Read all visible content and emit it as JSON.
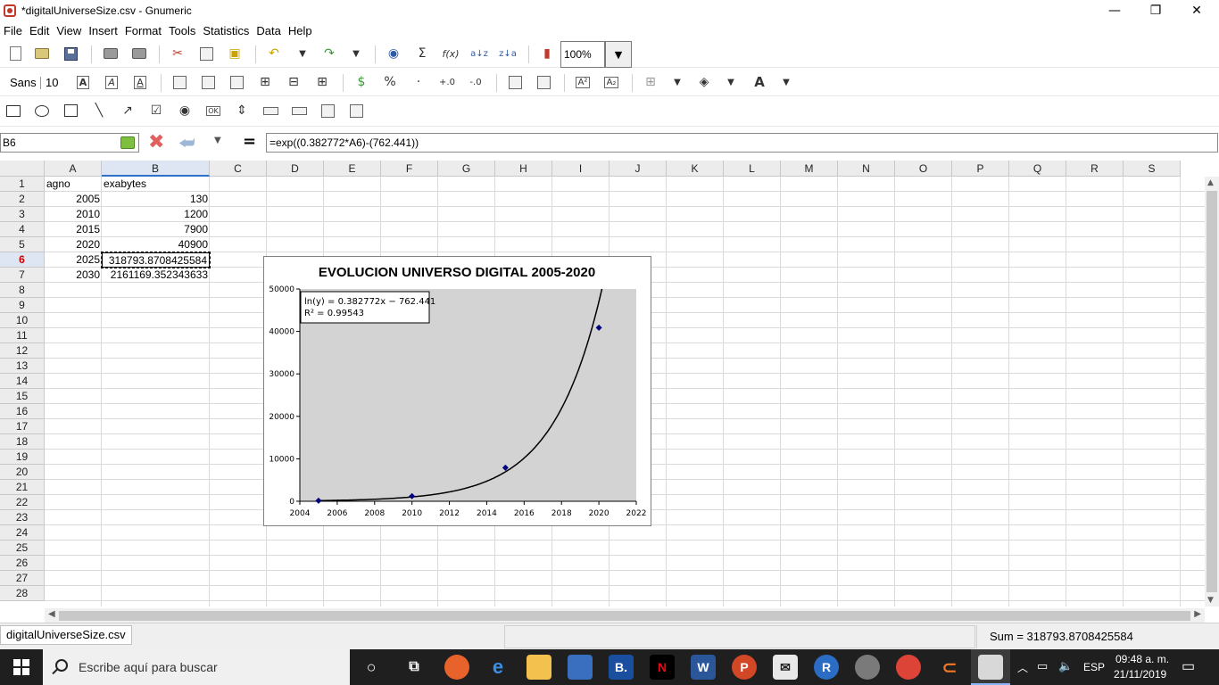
{
  "window": {
    "title": "*digitalUniverseSize.csv - Gnumeric",
    "minimize": "—",
    "restore": "❐",
    "close": "✕"
  },
  "menu": [
    "File",
    "Edit",
    "View",
    "Insert",
    "Format",
    "Tools",
    "Statistics",
    "Data",
    "Help"
  ],
  "toolbar": {
    "zoom": "100%",
    "font_name": "Sans",
    "font_size": "10"
  },
  "formula_bar": {
    "cell_ref": "B6",
    "equals": "=",
    "formula": "=exp((0.382772*A6)-(762.441))"
  },
  "columns": [
    "A",
    "B",
    "C",
    "D",
    "E",
    "F",
    "G",
    "H",
    "I",
    "J",
    "K",
    "L",
    "M",
    "N",
    "O",
    "P",
    "Q",
    "R",
    "S"
  ],
  "rows": [
    "1",
    "2",
    "3",
    "4",
    "5",
    "6",
    "7",
    "8",
    "9",
    "10",
    "11",
    "12",
    "13",
    "14",
    "15",
    "16",
    "17",
    "18",
    "19",
    "20",
    "21",
    "22",
    "23",
    "24",
    "25",
    "26",
    "27",
    "28"
  ],
  "cells": {
    "A1": "agno",
    "B1": "exabytes",
    "A2": "2005",
    "B2": "130",
    "A3": "2010",
    "B3": "1200",
    "A4": "2015",
    "B4": "7900",
    "A5": "2020",
    "B5": "40900",
    "A6": "2025",
    "B6": "318793.8708425584",
    "A7": "2030",
    "B7": "2161169.352343633"
  },
  "active_cell": {
    "col": "B",
    "row": "6"
  },
  "chart_data": {
    "type": "scatter",
    "title": "EVOLUCION UNIVERSO DIGITAL 2005-2020",
    "x": [
      2005,
      2010,
      2015,
      2020
    ],
    "y": [
      130,
      1200,
      7900,
      40900
    ],
    "xlim": [
      2004,
      2022
    ],
    "ylim": [
      0,
      50000
    ],
    "xticks": [
      "2004",
      "2006",
      "2008",
      "2010",
      "2012",
      "2014",
      "2016",
      "2018",
      "2020",
      "2022"
    ],
    "yticks": [
      "0",
      "10000",
      "20000",
      "30000",
      "40000",
      "50000"
    ],
    "trendline": {
      "type": "exponential",
      "a": 0.382772,
      "b": -762.441
    },
    "trend_label_1": "ln(y) = 0.382772x − 762.441",
    "trend_label_2": "R² = 0.99543",
    "plot_bg": "#d3d3d3",
    "marker_color": "#00007f",
    "grid": false
  },
  "sheet": {
    "tab": "digitalUniverseSize.csv",
    "status": "Sum = 318793.8708425584"
  },
  "taskbar": {
    "search_placeholder": "Escribe aquí para buscar",
    "lang": "ESP",
    "time": "09:48 a. m.",
    "date": "21/11/2019"
  }
}
